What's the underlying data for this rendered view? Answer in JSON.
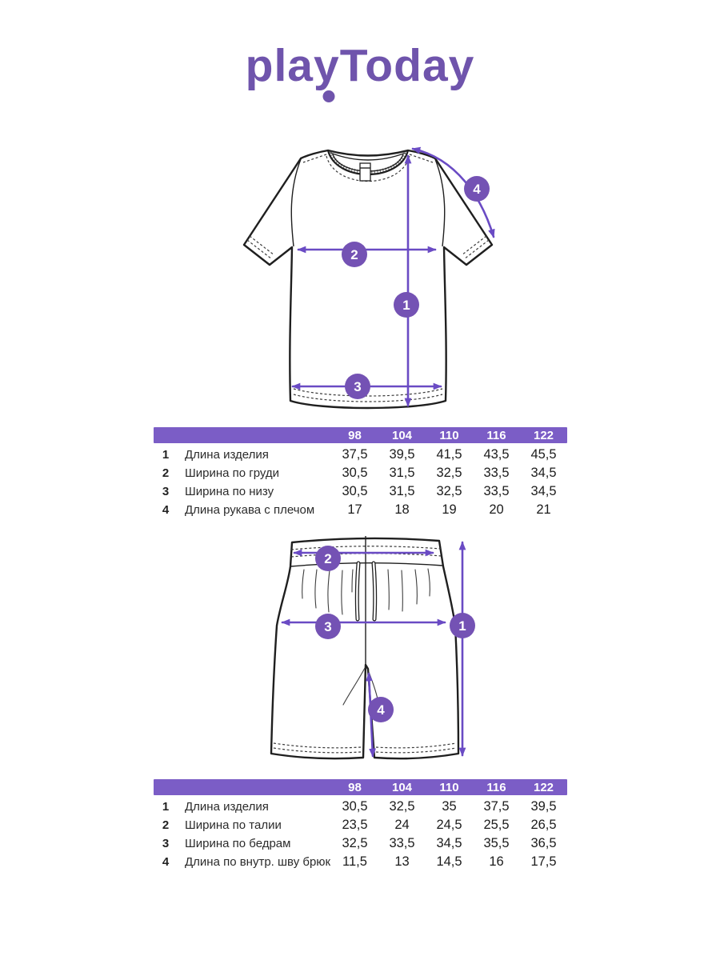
{
  "logo": {
    "part_pla": "pla",
    "part_y": "y",
    "part_today": "Today"
  },
  "colors": {
    "brand_purple": "#6F54AC",
    "header_purple": "#7B5DC6",
    "badge_purple": "#7452B4",
    "arrow_purple": "#6A4BC4",
    "ink": "#1f1f1f"
  },
  "tshirt": {
    "badges": [
      "1",
      "2",
      "3",
      "4"
    ],
    "table": {
      "sizes": [
        "98",
        "104",
        "110",
        "116",
        "122"
      ],
      "rows": [
        {
          "num": "1",
          "label": "Длина изделия",
          "values": [
            "37,5",
            "39,5",
            "41,5",
            "43,5",
            "45,5"
          ]
        },
        {
          "num": "2",
          "label": "Ширина по груди",
          "values": [
            "30,5",
            "31,5",
            "32,5",
            "33,5",
            "34,5"
          ]
        },
        {
          "num": "3",
          "label": "Ширина по низу",
          "values": [
            "30,5",
            "31,5",
            "32,5",
            "33,5",
            "34,5"
          ]
        },
        {
          "num": "4",
          "label": "Длина рукава с плечом",
          "values": [
            "17",
            "18",
            "19",
            "20",
            "21"
          ]
        }
      ]
    }
  },
  "shorts": {
    "badges": [
      "1",
      "2",
      "3",
      "4"
    ],
    "table": {
      "sizes": [
        "98",
        "104",
        "110",
        "116",
        "122"
      ],
      "rows": [
        {
          "num": "1",
          "label": "Длина изделия",
          "values": [
            "30,5",
            "32,5",
            "35",
            "37,5",
            "39,5"
          ]
        },
        {
          "num": "2",
          "label": "Ширина по талии",
          "values": [
            "23,5",
            "24",
            "24,5",
            "25,5",
            "26,5"
          ]
        },
        {
          "num": "3",
          "label": "Ширина по бедрам",
          "values": [
            "32,5",
            "33,5",
            "34,5",
            "35,5",
            "36,5"
          ]
        },
        {
          "num": "4",
          "label": "Длина по внутр. шву брюк",
          "values": [
            "11,5",
            "13",
            "14,5",
            "16",
            "17,5"
          ]
        }
      ]
    }
  }
}
